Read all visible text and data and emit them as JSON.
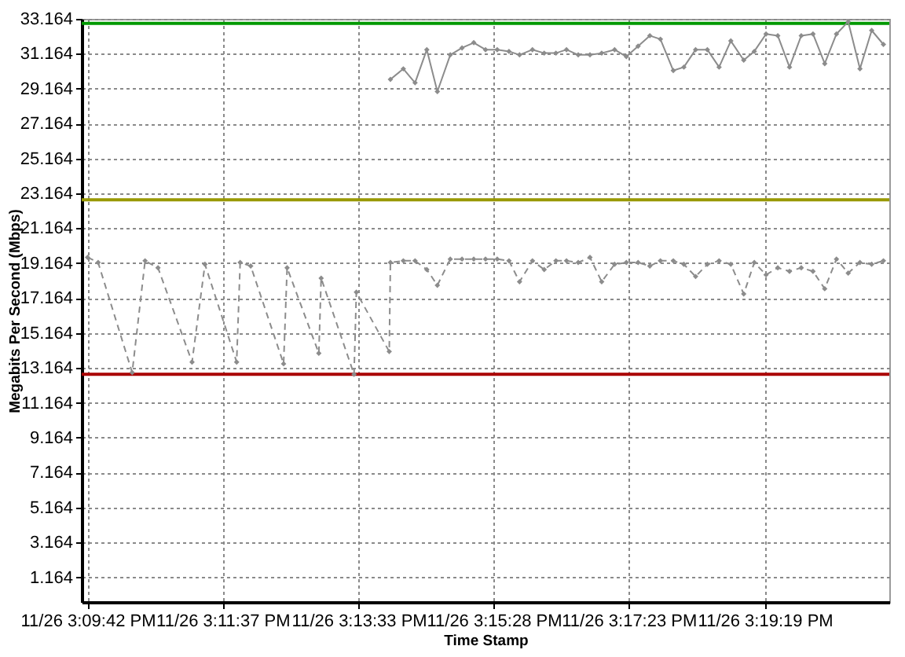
{
  "chart_data": {
    "type": "line",
    "xlabel": "Time Stamp",
    "ylabel": "Megabits Per Second (Mbps)",
    "x": [
      "--11-26T15:09:42",
      "--11-26T15:09:51",
      "--11-26T15:10:20",
      "--11-26T15:10:31",
      "--11-26T15:10:42",
      "--11-26T15:11:11",
      "--11-26T15:11:22",
      "--11-26T15:11:49",
      "--11-26T15:11:52",
      "--11-26T15:12:01",
      "--11-26T15:12:29",
      "--11-26T15:12:32",
      "--11-26T15:12:59",
      "--11-26T15:13:01",
      "--11-26T15:13:29",
      "--11-26T15:13:31",
      "--11-26T15:13:59",
      "--11-26T15:14:00",
      "--11-26T15:14:11",
      "--11-26T15:14:21",
      "--11-26T15:14:31",
      "--11-26T15:14:40",
      "--11-26T15:14:51",
      "--11-26T15:15:01",
      "--11-26T15:15:11",
      "--11-26T15:15:21",
      "--11-26T15:15:31",
      "--11-26T15:15:41",
      "--11-26T15:15:50",
      "--11-26T15:16:01",
      "--11-26T15:16:11",
      "--11-26T15:16:21",
      "--11-26T15:16:30",
      "--11-26T15:16:40",
      "--11-26T15:16:50",
      "--11-26T15:17:00",
      "--11-26T15:17:11",
      "--11-26T15:17:21",
      "--11-26T15:17:31",
      "--11-26T15:17:41",
      "--11-26T15:17:50",
      "--11-26T15:18:01",
      "--11-26T15:18:10",
      "--11-26T15:18:20",
      "--11-26T15:18:30",
      "--11-26T15:18:40",
      "--11-26T15:18:50",
      "--11-26T15:19:01",
      "--11-26T15:19:10",
      "--11-26T15:19:20",
      "--11-26T15:19:30",
      "--11-26T15:19:40",
      "--11-26T15:19:50",
      "--11-26T15:20:00",
      "--11-26T15:20:10",
      "--11-26T15:20:20",
      "--11-26T15:20:30",
      "--11-26T15:20:40",
      "--11-26T15:20:50",
      "--11-26T15:21:00"
    ],
    "xlim": [
      "--11-26T15:09:37",
      "--11-26T15:21:05"
    ],
    "xticks": [
      {
        "value": "--11-26T15:09:42",
        "label": "11/26 3:09:42 PM"
      },
      {
        "value": "--11-26T15:11:37",
        "label": "11/26 3:11:37 PM"
      },
      {
        "value": "--11-26T15:13:33",
        "label": "11/26 3:13:33 PM"
      },
      {
        "value": "--11-26T15:15:28",
        "label": "11/26 3:15:28 PM"
      },
      {
        "value": "--11-26T15:17:23",
        "label": "11/26 3:17:23 PM"
      },
      {
        "value": "--11-26T15:19:19",
        "label": "11/26 3:19:19 PM"
      }
    ],
    "ylim": [
      -0.25,
      33.164
    ],
    "yticks": [
      1.164,
      3.164,
      5.164,
      7.164,
      9.164,
      11.164,
      13.164,
      15.164,
      17.164,
      19.164,
      21.164,
      23.164,
      25.164,
      27.164,
      29.164,
      31.164,
      33.164
    ],
    "grid": true,
    "marker": "diamond",
    "series": [
      {
        "color": "#8c8c8c",
        "line_style": "dashed",
        "values": [
          19.5,
          19.2,
          12.9,
          19.3,
          18.9,
          13.5,
          19.1,
          13.5,
          19.2,
          19.0,
          13.4,
          18.9,
          14.0,
          18.3,
          12.8,
          17.5,
          14.1,
          19.2,
          19.3,
          19.3,
          18.8,
          17.9,
          19.4,
          19.4,
          19.4,
          19.4,
          19.4,
          19.3,
          18.1,
          19.3,
          18.8,
          19.3,
          19.3,
          19.2,
          19.5,
          18.1,
          19.1,
          19.2,
          19.2,
          19.0,
          19.3,
          19.3,
          19.1,
          18.4,
          19.1,
          19.3,
          19.1,
          17.4,
          19.2,
          18.5,
          18.9,
          18.7,
          18.9,
          18.7,
          17.7,
          19.4,
          18.6,
          19.2,
          19.1,
          19.3
        ]
      },
      {
        "color": "#8c8c8c",
        "line_style": "solid",
        "values": [
          null,
          null,
          null,
          null,
          null,
          null,
          null,
          null,
          null,
          null,
          null,
          null,
          null,
          null,
          null,
          null,
          null,
          29.7,
          30.3,
          29.5,
          31.4,
          29.0,
          31.1,
          31.5,
          31.8,
          31.4,
          31.4,
          31.3,
          31.1,
          31.4,
          31.2,
          31.2,
          31.4,
          31.1,
          31.1,
          31.2,
          31.4,
          31.0,
          31.6,
          32.2,
          32.0,
          30.2,
          30.4,
          31.4,
          31.4,
          30.4,
          31.9,
          30.8,
          31.3,
          32.3,
          32.2,
          30.4,
          32.2,
          32.3,
          30.6,
          32.3,
          33.0,
          30.3,
          32.5,
          31.7
        ]
      }
    ],
    "ref_lines": [
      {
        "axis": "y",
        "value": 32.9,
        "color": "#009900"
      },
      {
        "axis": "y",
        "value": 22.8,
        "color": "#999900"
      },
      {
        "axis": "y",
        "value": 12.8,
        "color": "#aa0000"
      }
    ]
  }
}
